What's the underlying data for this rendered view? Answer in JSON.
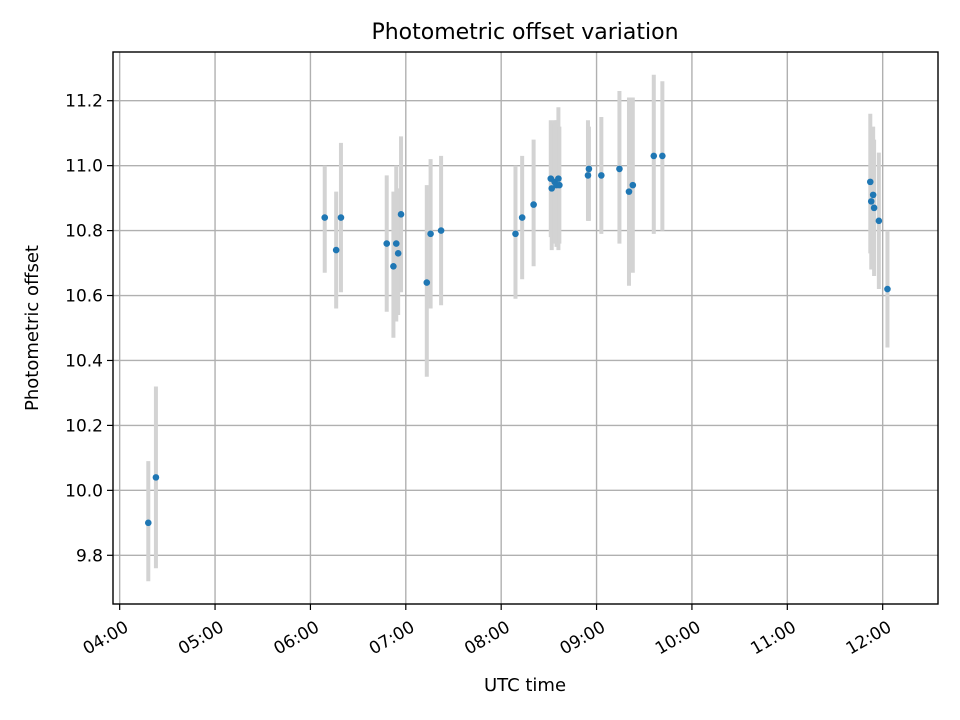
{
  "chart_data": {
    "type": "scatter",
    "title": "Photometric offset variation",
    "xlabel": "UTC time",
    "ylabel": "Photometric offset",
    "x_unit": "hours UTC",
    "xlim": [
      3.93,
      12.58
    ],
    "ylim": [
      9.65,
      11.35
    ],
    "xticks": [
      {
        "value": 4,
        "label": "04:00"
      },
      {
        "value": 5,
        "label": "05:00"
      },
      {
        "value": 6,
        "label": "06:00"
      },
      {
        "value": 7,
        "label": "07:00"
      },
      {
        "value": 8,
        "label": "08:00"
      },
      {
        "value": 9,
        "label": "09:00"
      },
      {
        "value": 10,
        "label": "10:00"
      },
      {
        "value": 11,
        "label": "11:00"
      },
      {
        "value": 12,
        "label": "12:00"
      }
    ],
    "yticks": [
      {
        "value": 9.8,
        "label": "9.8"
      },
      {
        "value": 10.0,
        "label": "10.0"
      },
      {
        "value": 10.2,
        "label": "10.2"
      },
      {
        "value": 10.4,
        "label": "10.4"
      },
      {
        "value": 10.6,
        "label": "10.6"
      },
      {
        "value": 10.8,
        "label": "10.8"
      },
      {
        "value": 11.0,
        "label": "11.0"
      },
      {
        "value": 11.2,
        "label": "11.2"
      }
    ],
    "grid": true,
    "colors": {
      "point": "#1f77b4",
      "errorbar": "#d3d3d3",
      "grid": "#b0b0b0"
    },
    "points": [
      {
        "x": 4.3,
        "y": 9.9,
        "ylo": 9.72,
        "yhi": 10.09
      },
      {
        "x": 4.38,
        "y": 10.04,
        "ylo": 9.76,
        "yhi": 10.32
      },
      {
        "x": 6.15,
        "y": 10.84,
        "ylo": 10.67,
        "yhi": 11.0
      },
      {
        "x": 6.27,
        "y": 10.74,
        "ylo": 10.56,
        "yhi": 10.92
      },
      {
        "x": 6.32,
        "y": 10.84,
        "ylo": 10.61,
        "yhi": 11.07
      },
      {
        "x": 6.8,
        "y": 10.76,
        "ylo": 10.55,
        "yhi": 10.97
      },
      {
        "x": 6.87,
        "y": 10.69,
        "ylo": 10.47,
        "yhi": 10.92
      },
      {
        "x": 6.9,
        "y": 10.76,
        "ylo": 10.52,
        "yhi": 11.0
      },
      {
        "x": 6.92,
        "y": 10.73,
        "ylo": 10.54,
        "yhi": 10.93
      },
      {
        "x": 6.95,
        "y": 10.85,
        "ylo": 10.61,
        "yhi": 11.09
      },
      {
        "x": 7.22,
        "y": 10.64,
        "ylo": 10.35,
        "yhi": 10.94
      },
      {
        "x": 7.26,
        "y": 10.79,
        "ylo": 10.56,
        "yhi": 11.02
      },
      {
        "x": 7.37,
        "y": 10.8,
        "ylo": 10.57,
        "yhi": 11.03
      },
      {
        "x": 8.15,
        "y": 10.79,
        "ylo": 10.59,
        "yhi": 11.0
      },
      {
        "x": 8.22,
        "y": 10.84,
        "ylo": 10.65,
        "yhi": 11.03
      },
      {
        "x": 8.34,
        "y": 10.88,
        "ylo": 10.69,
        "yhi": 11.08
      },
      {
        "x": 8.52,
        "y": 10.96,
        "ylo": 10.78,
        "yhi": 11.14
      },
      {
        "x": 8.53,
        "y": 10.93,
        "ylo": 10.74,
        "yhi": 11.13
      },
      {
        "x": 8.56,
        "y": 10.95,
        "ylo": 10.76,
        "yhi": 11.14
      },
      {
        "x": 8.58,
        "y": 10.94,
        "ylo": 10.75,
        "yhi": 11.14
      },
      {
        "x": 8.6,
        "y": 10.96,
        "ylo": 10.74,
        "yhi": 11.18
      },
      {
        "x": 8.61,
        "y": 10.94,
        "ylo": 10.76,
        "yhi": 11.12
      },
      {
        "x": 8.91,
        "y": 10.97,
        "ylo": 10.83,
        "yhi": 11.14
      },
      {
        "x": 8.92,
        "y": 10.99,
        "ylo": 10.83,
        "yhi": 11.12
      },
      {
        "x": 9.05,
        "y": 10.97,
        "ylo": 10.79,
        "yhi": 11.15
      },
      {
        "x": 9.24,
        "y": 10.99,
        "ylo": 10.76,
        "yhi": 11.23
      },
      {
        "x": 9.34,
        "y": 10.92,
        "ylo": 10.63,
        "yhi": 11.21
      },
      {
        "x": 9.38,
        "y": 10.94,
        "ylo": 10.67,
        "yhi": 11.21
      },
      {
        "x": 9.6,
        "y": 11.03,
        "ylo": 10.79,
        "yhi": 11.28
      },
      {
        "x": 9.69,
        "y": 11.03,
        "ylo": 10.8,
        "yhi": 11.26
      },
      {
        "x": 11.87,
        "y": 10.95,
        "ylo": 10.73,
        "yhi": 11.16
      },
      {
        "x": 11.88,
        "y": 10.89,
        "ylo": 10.68,
        "yhi": 11.1
      },
      {
        "x": 11.9,
        "y": 10.91,
        "ylo": 10.71,
        "yhi": 11.12
      },
      {
        "x": 11.91,
        "y": 10.87,
        "ylo": 10.66,
        "yhi": 11.08
      },
      {
        "x": 11.96,
        "y": 10.83,
        "ylo": 10.62,
        "yhi": 11.04
      },
      {
        "x": 12.05,
        "y": 10.62,
        "ylo": 10.44,
        "yhi": 10.8
      }
    ]
  }
}
